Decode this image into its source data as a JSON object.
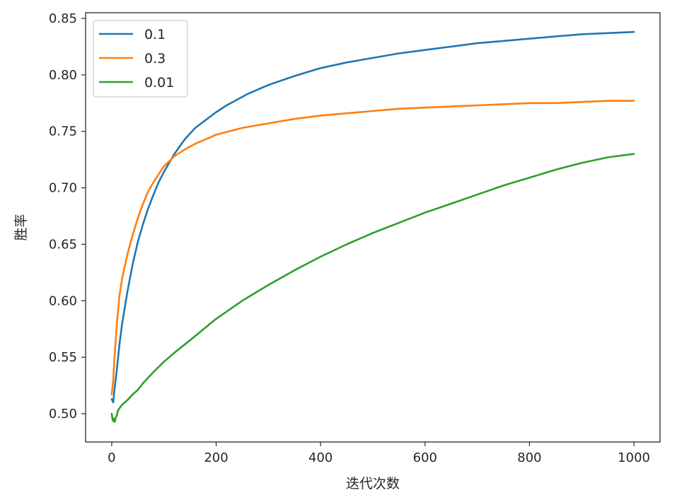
{
  "chart_data": {
    "type": "line",
    "title": "",
    "xlabel": "迭代次数",
    "ylabel": "胜率",
    "xlim": [
      -50,
      1050
    ],
    "ylim": [
      0.475,
      0.855
    ],
    "xticks": [
      0,
      200,
      400,
      600,
      800,
      1000
    ],
    "xtick_labels": [
      "0",
      "200",
      "400",
      "600",
      "800",
      "1000"
    ],
    "yticks": [
      0.5,
      0.55,
      0.6,
      0.65,
      0.7,
      0.75,
      0.8,
      0.85
    ],
    "ytick_labels": [
      "0.50",
      "0.55",
      "0.60",
      "0.65",
      "0.70",
      "0.75",
      "0.80",
      "0.85"
    ],
    "grid": false,
    "legend": {
      "position": "top-left",
      "entries": [
        "0.1",
        "0.3",
        "0.01"
      ]
    },
    "series": [
      {
        "name": "0.1",
        "color": "#1f77b4",
        "x": [
          0,
          3,
          5,
          10,
          15,
          20,
          30,
          40,
          50,
          60,
          70,
          80,
          90,
          100,
          120,
          140,
          160,
          180,
          200,
          220,
          240,
          260,
          280,
          300,
          350,
          400,
          450,
          500,
          550,
          600,
          650,
          700,
          750,
          800,
          850,
          900,
          950,
          1000
        ],
        "y": [
          0.513,
          0.51,
          0.52,
          0.54,
          0.562,
          0.58,
          0.608,
          0.632,
          0.652,
          0.668,
          0.682,
          0.694,
          0.705,
          0.714,
          0.73,
          0.743,
          0.753,
          0.76,
          0.767,
          0.773,
          0.778,
          0.783,
          0.787,
          0.791,
          0.799,
          0.806,
          0.811,
          0.815,
          0.819,
          0.822,
          0.825,
          0.828,
          0.83,
          0.832,
          0.834,
          0.836,
          0.837,
          0.838
        ]
      },
      {
        "name": "0.3",
        "color": "#ff7f0e",
        "x": [
          0,
          3,
          5,
          10,
          15,
          20,
          30,
          40,
          50,
          60,
          70,
          80,
          90,
          100,
          120,
          140,
          160,
          180,
          200,
          250,
          300,
          350,
          400,
          450,
          500,
          550,
          600,
          650,
          700,
          750,
          800,
          850,
          900,
          950,
          1000
        ],
        "y": [
          0.517,
          0.53,
          0.548,
          0.58,
          0.605,
          0.62,
          0.641,
          0.658,
          0.673,
          0.686,
          0.697,
          0.705,
          0.712,
          0.719,
          0.728,
          0.734,
          0.739,
          0.743,
          0.747,
          0.753,
          0.757,
          0.761,
          0.764,
          0.766,
          0.768,
          0.77,
          0.771,
          0.772,
          0.773,
          0.774,
          0.775,
          0.775,
          0.776,
          0.777,
          0.777
        ]
      },
      {
        "name": "0.01",
        "color": "#2ca02c",
        "x": [
          0,
          1,
          2,
          3,
          4,
          5,
          6,
          8,
          10,
          12,
          15,
          20,
          30,
          40,
          50,
          60,
          80,
          100,
          120,
          150,
          200,
          250,
          300,
          350,
          400,
          450,
          500,
          550,
          600,
          650,
          700,
          750,
          800,
          850,
          900,
          950,
          1000
        ],
        "y": [
          0.5,
          0.497,
          0.494,
          0.496,
          0.493,
          0.495,
          0.493,
          0.497,
          0.499,
          0.503,
          0.505,
          0.508,
          0.512,
          0.517,
          0.521,
          0.527,
          0.537,
          0.546,
          0.554,
          0.565,
          0.584,
          0.6,
          0.614,
          0.627,
          0.639,
          0.65,
          0.66,
          0.669,
          0.678,
          0.686,
          0.694,
          0.702,
          0.709,
          0.716,
          0.722,
          0.727,
          0.73
        ]
      }
    ]
  }
}
